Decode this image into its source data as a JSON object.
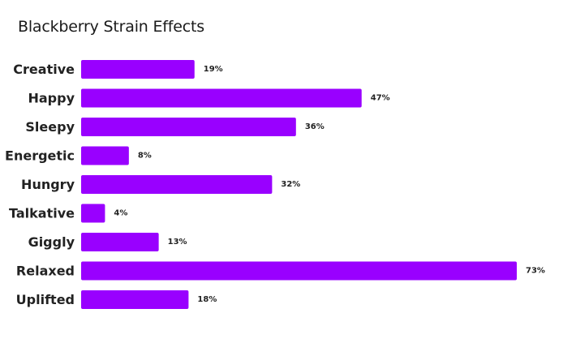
{
  "chart_data": {
    "type": "bar",
    "orientation": "horizontal",
    "title": "Blackberry Strain Effects",
    "categories": [
      "Creative",
      "Happy",
      "Sleepy",
      "Energetic",
      "Hungry",
      "Talkative",
      "Giggly",
      "Relaxed",
      "Uplifted"
    ],
    "values": [
      19,
      47,
      36,
      8,
      32,
      4,
      13,
      73,
      18
    ],
    "value_labels": [
      "19%",
      "47%",
      "36%",
      "8%",
      "32%",
      "4%",
      "13%",
      "73%",
      "18%"
    ],
    "xlim": [
      0,
      73
    ],
    "bar_color": "#9900ff",
    "grid": false,
    "legend": "none"
  }
}
